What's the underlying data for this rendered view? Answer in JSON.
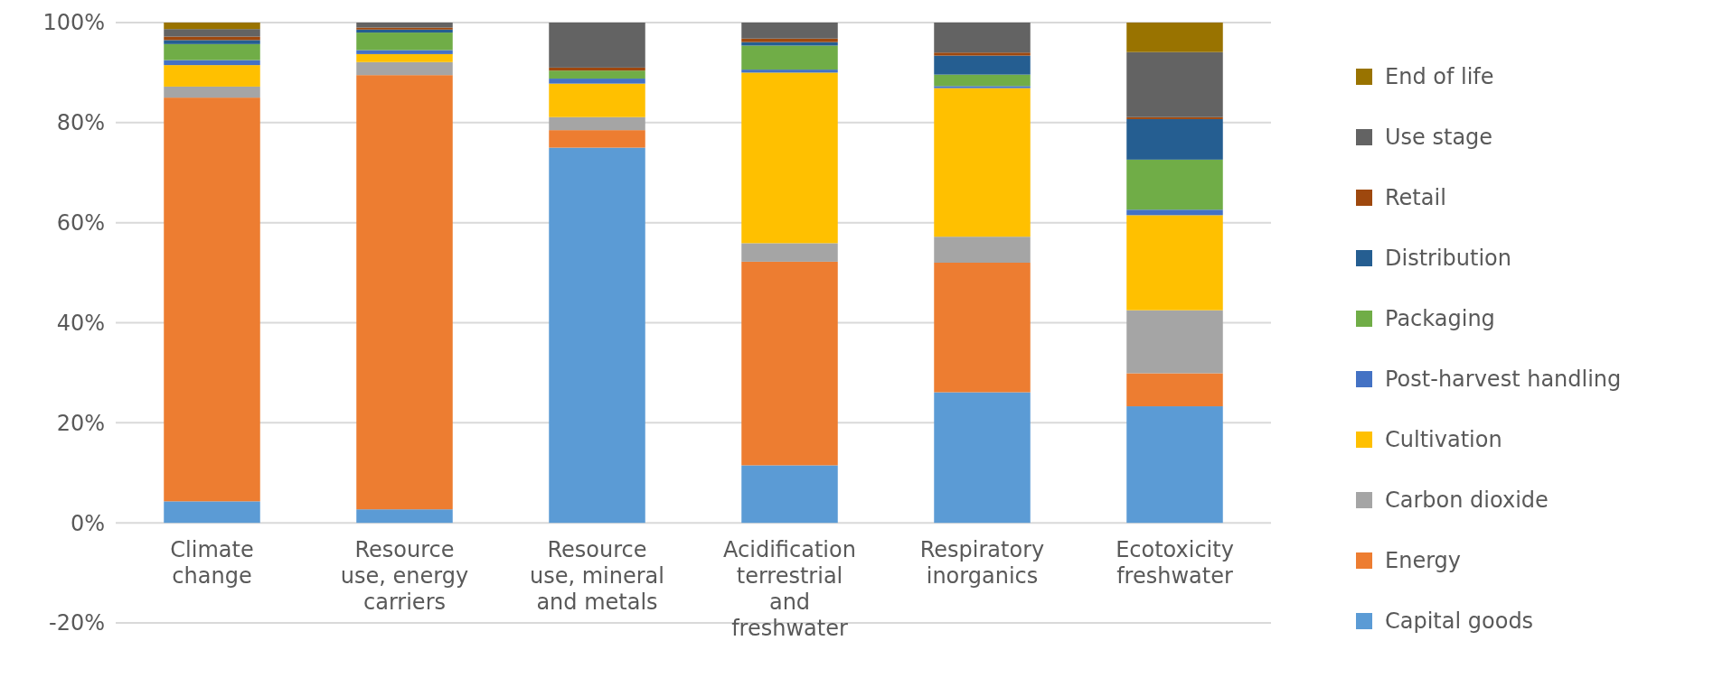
{
  "chart_data": {
    "type": "bar",
    "stacked": true,
    "categories": [
      "Climate change",
      "Resource use, energy carriers",
      "Resource use, mineral and metals",
      "Acidification terrestrial and freshwater",
      "Respiratory inorganics",
      "Ecotoxicity freshwater"
    ],
    "series": [
      {
        "name": "Capital goods",
        "color": "#5b9bd5",
        "values": [
          4.3,
          2.7,
          75.0,
          11.5,
          26.1,
          23.3
        ]
      },
      {
        "name": "Energy",
        "color": "#ed7d31",
        "values": [
          80.7,
          86.8,
          3.5,
          40.7,
          25.9,
          6.6
        ]
      },
      {
        "name": "Carbon dioxide",
        "color": "#a5a5a5",
        "values": [
          2.2,
          2.6,
          2.6,
          3.7,
          5.2,
          12.6
        ]
      },
      {
        "name": "Cultivation",
        "color": "#ffc000",
        "values": [
          4.3,
          1.6,
          6.7,
          34.1,
          29.7,
          19.0
        ]
      },
      {
        "name": "Post-harvest handling",
        "color": "#4472c4",
        "values": [
          1.0,
          0.8,
          1.0,
          0.6,
          0.4,
          1.1
        ]
      },
      {
        "name": "Packaging",
        "color": "#70ad47",
        "values": [
          3.2,
          3.5,
          1.6,
          4.8,
          2.3,
          10.0
        ]
      },
      {
        "name": "Distribution",
        "color": "#255e91",
        "values": [
          0.8,
          0.6,
          0,
          0.7,
          3.8,
          8.1
        ]
      },
      {
        "name": "Retail",
        "color": "#9e480e",
        "values": [
          0.7,
          0.4,
          0.6,
          0.7,
          0.6,
          0.4
        ]
      },
      {
        "name": "Use stage",
        "color": "#636363",
        "values": [
          1.5,
          1.0,
          9.0,
          3.2,
          6.0,
          13.0
        ]
      },
      {
        "name": "End of life",
        "color": "#997300",
        "values": [
          1.3,
          0,
          0,
          0,
          0,
          5.9
        ]
      }
    ],
    "ylim": [
      -20,
      100
    ],
    "yticks": [
      {
        "value": -20,
        "label": "-20%"
      },
      {
        "value": 0,
        "label": "0%"
      },
      {
        "value": 20,
        "label": "20%"
      },
      {
        "value": 40,
        "label": "40%"
      },
      {
        "value": 60,
        "label": "60%"
      },
      {
        "value": 80,
        "label": "80%"
      },
      {
        "value": 100,
        "label": "100%"
      }
    ],
    "grid": "y",
    "legend": "right"
  }
}
